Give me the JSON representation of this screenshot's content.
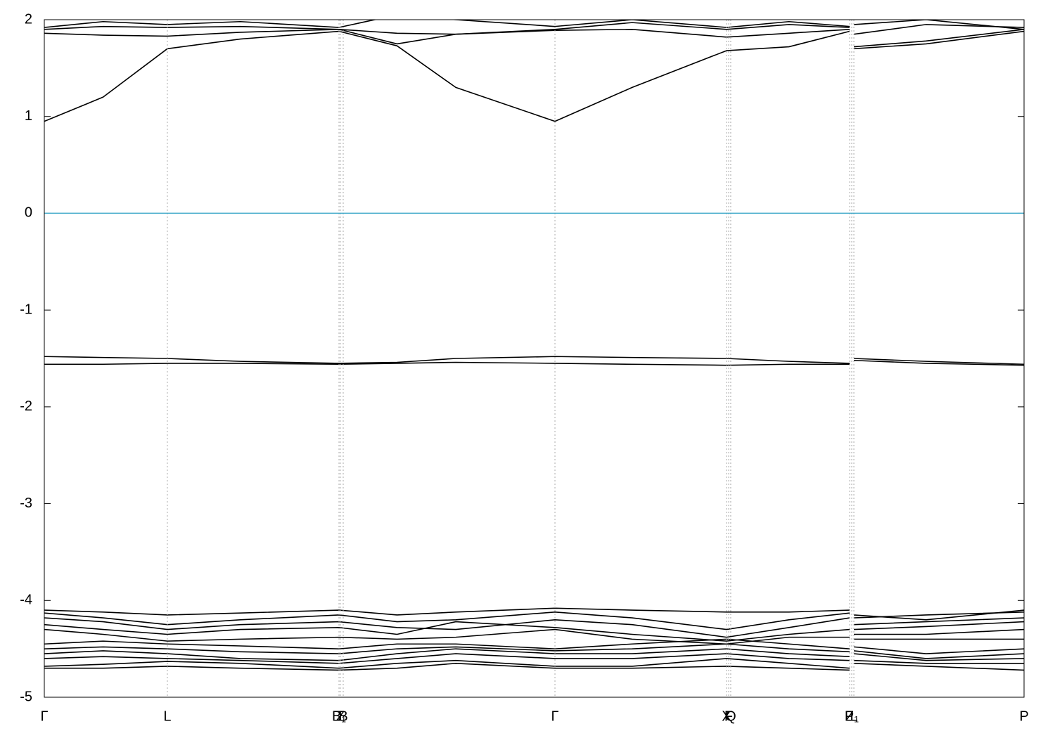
{
  "chart_data": {
    "type": "line",
    "x": [
      0,
      0.06,
      0.1256,
      0.2,
      0.3008,
      0.36,
      0.42,
      0.5212,
      0.6,
      0.6963,
      0.76,
      0.822,
      0.8241,
      0.8263,
      0.9,
      1.0
    ],
    "xlim": [
      0,
      1
    ],
    "xticks": [
      {
        "value": 0,
        "label": "Γ"
      },
      {
        "value": 0.1256,
        "label": "L"
      },
      {
        "value": 0.3008,
        "label": "B₁"
      },
      {
        "value": 0.3022,
        "label": "Z"
      },
      {
        "value": 0.3051,
        "label": "B"
      },
      {
        "value": 0.5212,
        "label": "Γ"
      },
      {
        "value": 0.6963,
        "label": "X"
      },
      {
        "value": 0.6985,
        "label": "F"
      },
      {
        "value": 0.7006,
        "label": "Q"
      },
      {
        "value": 0.822,
        "label": "Z"
      },
      {
        "value": 0.8241,
        "label": "P₁"
      },
      {
        "value": 0.8263,
        "label": "L"
      },
      {
        "value": 1.0,
        "label": "P"
      }
    ],
    "ylim": [
      -5,
      2
    ],
    "yticks": [
      -5,
      -4,
      -3,
      -2,
      -1,
      0,
      1,
      2
    ],
    "reference_line": {
      "y": 0,
      "color": "#3fa9c9"
    },
    "grid_color": "#aaaaaa",
    "series": [
      {
        "color": "#000000",
        "values": [
          0.95,
          1.2,
          1.7,
          1.8,
          1.88,
          1.73,
          1.3,
          0.95,
          1.3,
          1.68,
          1.72,
          1.88,
          null,
          1.7,
          1.75,
          1.88
        ]
      },
      {
        "color": "#000000",
        "values": [
          1.86,
          1.84,
          1.83,
          1.87,
          1.9,
          1.75,
          1.85,
          1.89,
          1.9,
          1.82,
          1.86,
          1.9,
          null,
          1.72,
          1.78,
          1.9
        ]
      },
      {
        "color": "#000000",
        "values": [
          1.9,
          1.93,
          1.92,
          1.93,
          1.9,
          1.86,
          1.85,
          1.9,
          1.97,
          1.9,
          1.95,
          1.92,
          null,
          1.85,
          1.95,
          1.92
        ]
      },
      {
        "color": "#000000",
        "values": [
          1.92,
          1.98,
          1.95,
          1.98,
          1.92,
          2.05,
          2.0,
          1.93,
          2.0,
          1.92,
          1.98,
          1.93,
          null,
          1.95,
          2.0,
          1.9
        ]
      },
      {
        "color": "#000000",
        "values": [
          -1.48,
          -1.49,
          -1.5,
          -1.53,
          -1.55,
          -1.54,
          -1.5,
          -1.48,
          -1.49,
          -1.5,
          -1.53,
          -1.55,
          null,
          -1.5,
          -1.53,
          -1.56
        ]
      },
      {
        "color": "#000000",
        "values": [
          -1.56,
          -1.56,
          -1.55,
          -1.55,
          -1.56,
          -1.55,
          -1.54,
          -1.55,
          -1.56,
          -1.57,
          -1.56,
          -1.56,
          null,
          -1.52,
          -1.55,
          -1.57
        ]
      },
      {
        "color": "#000000",
        "values": [
          -4.1,
          -4.12,
          -4.15,
          -4.13,
          -4.1,
          -4.15,
          -4.12,
          -4.08,
          -4.1,
          -4.12,
          -4.12,
          -4.1,
          null,
          -4.15,
          -4.2,
          -4.1
        ]
      },
      {
        "color": "#000000",
        "values": [
          -4.13,
          -4.18,
          -4.25,
          -4.2,
          -4.15,
          -4.22,
          -4.2,
          -4.12,
          -4.18,
          -4.3,
          -4.2,
          -4.13,
          null,
          -4.18,
          -4.15,
          -4.12
        ]
      },
      {
        "color": "#000000",
        "values": [
          -4.18,
          -4.22,
          -4.3,
          -4.25,
          -4.22,
          -4.28,
          -4.3,
          -4.2,
          -4.25,
          -4.38,
          -4.28,
          -4.18,
          null,
          -4.25,
          -4.22,
          -4.18
        ]
      },
      {
        "color": "#000000",
        "values": [
          -4.25,
          -4.3,
          -4.35,
          -4.3,
          -4.28,
          -4.35,
          -4.22,
          -4.28,
          -4.35,
          -4.42,
          -4.35,
          -4.3,
          null,
          -4.3,
          -4.27,
          -4.22
        ]
      },
      {
        "color": "#000000",
        "values": [
          -4.3,
          -4.35,
          -4.42,
          -4.4,
          -4.38,
          -4.4,
          -4.38,
          -4.3,
          -4.4,
          -4.45,
          -4.38,
          -4.38,
          null,
          -4.35,
          -4.35,
          -4.3
        ]
      },
      {
        "color": "#000000",
        "values": [
          -4.45,
          -4.42,
          -4.45,
          -4.47,
          -4.5,
          -4.45,
          -4.45,
          -4.5,
          -4.45,
          -4.4,
          -4.45,
          -4.5,
          null,
          -4.4,
          -4.4,
          -4.4
        ]
      },
      {
        "color": "#000000",
        "values": [
          -4.5,
          -4.48,
          -4.5,
          -4.53,
          -4.55,
          -4.5,
          -4.48,
          -4.52,
          -4.5,
          -4.45,
          -4.5,
          -4.53,
          null,
          -4.48,
          -4.55,
          -4.5
        ]
      },
      {
        "color": "#000000",
        "values": [
          -4.55,
          -4.52,
          -4.55,
          -4.6,
          -4.62,
          -4.55,
          -4.5,
          -4.55,
          -4.55,
          -4.5,
          -4.55,
          -4.58,
          null,
          -4.52,
          -4.6,
          -4.55
        ]
      },
      {
        "color": "#000000",
        "values": [
          -4.6,
          -4.58,
          -4.6,
          -4.62,
          -4.65,
          -4.6,
          -4.55,
          -4.6,
          -4.6,
          -4.55,
          -4.6,
          -4.62,
          null,
          -4.55,
          -4.62,
          -4.6
        ]
      },
      {
        "color": "#000000",
        "values": [
          -4.68,
          -4.66,
          -4.63,
          -4.65,
          -4.7,
          -4.65,
          -4.62,
          -4.68,
          -4.68,
          -4.6,
          -4.65,
          -4.7,
          null,
          -4.62,
          -4.65,
          -4.65
        ]
      },
      {
        "color": "#000000",
        "values": [
          -4.7,
          -4.7,
          -4.68,
          -4.7,
          -4.72,
          -4.7,
          -4.65,
          -4.7,
          -4.7,
          -4.68,
          -4.7,
          -4.72,
          null,
          -4.65,
          -4.68,
          -4.72
        ]
      }
    ]
  }
}
